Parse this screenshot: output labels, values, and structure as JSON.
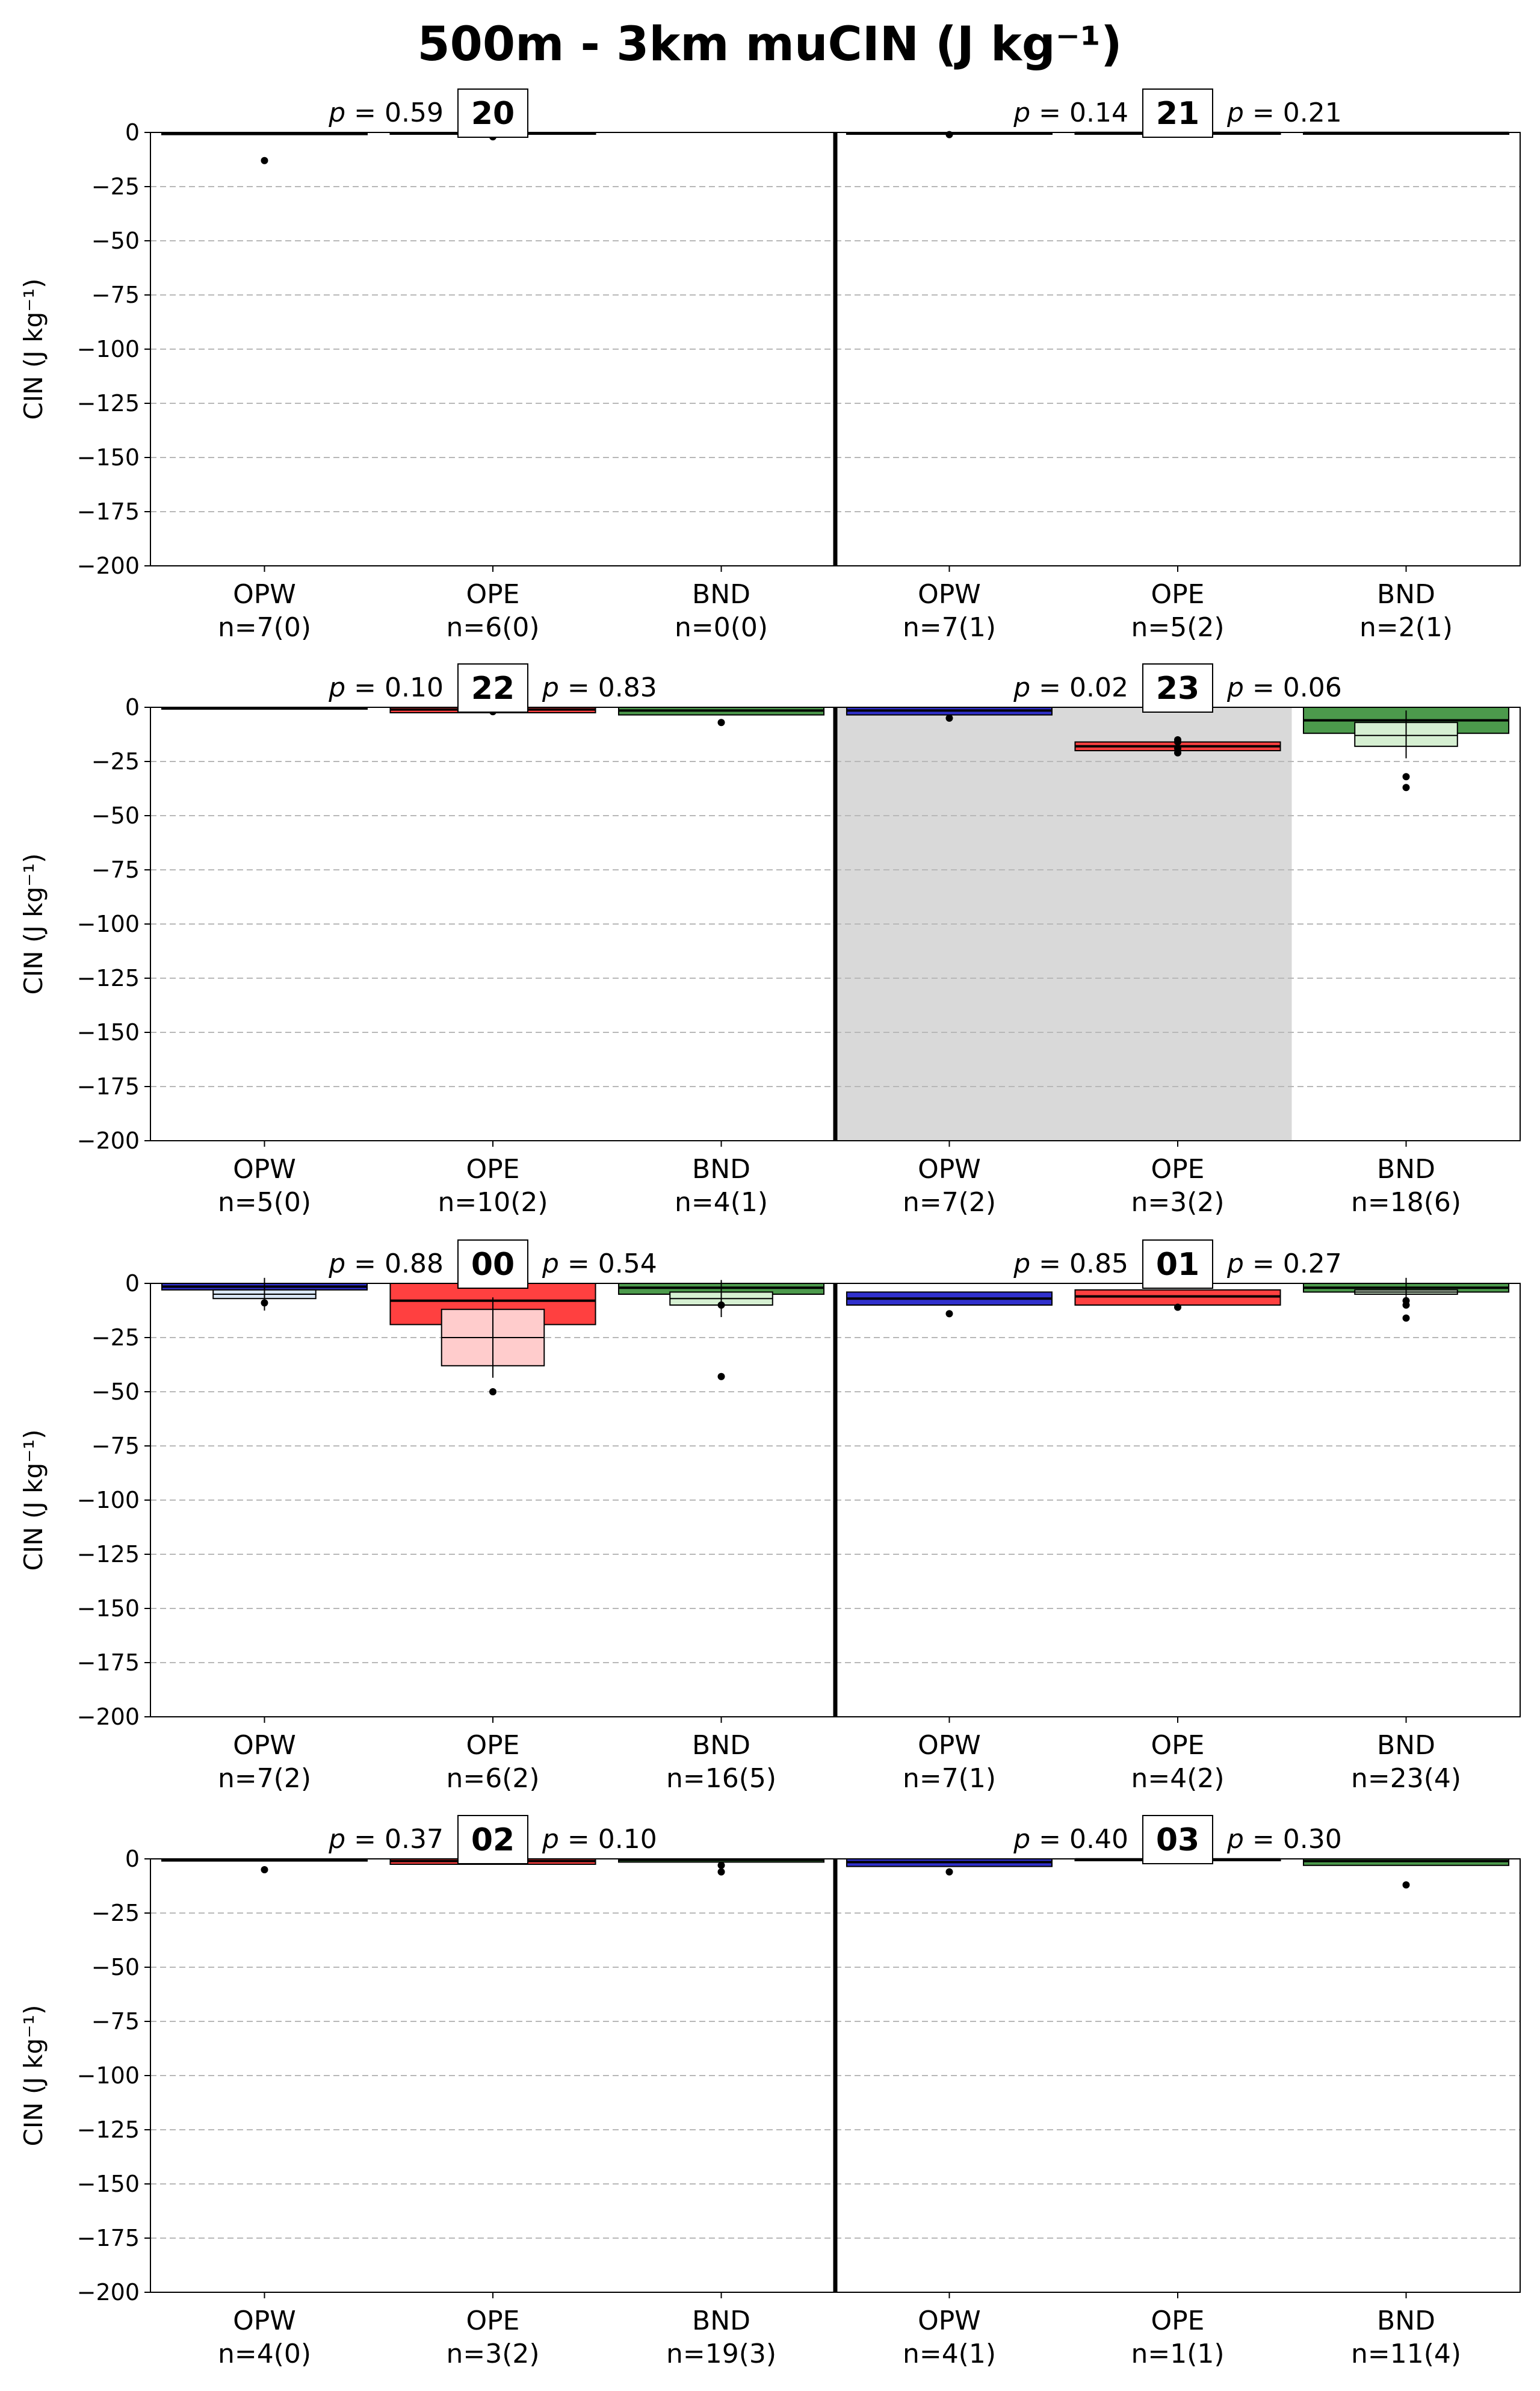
{
  "title": "500m - 3km muCIN (J kg⁻¹)",
  "ylabel": "CIN (J kg⁻¹)",
  "ytick_labels": [
    "0",
    "−25",
    "−50",
    "−75",
    "−100",
    "−125",
    "−150",
    "−175",
    "−200"
  ],
  "chart_data": {
    "type": "box",
    "ylim": [
      -200,
      0
    ],
    "yticks": [
      0,
      -25,
      -50,
      -75,
      -100,
      -125,
      -150,
      -175,
      -200
    ],
    "grid": "y-dashed",
    "categories": [
      "OPW",
      "OPE",
      "BND"
    ],
    "colors": {
      "OPW": {
        "main": "#3030cc",
        "light": "#d8e6f5"
      },
      "OPE": {
        "main": "#ff4040",
        "light": "#ffcccc"
      },
      "BND": {
        "main": "#4c9a4c",
        "light": "#d6f0d2"
      }
    },
    "rows": [
      {
        "panels": [
          {
            "hour": "20",
            "p_left": "0.59",
            "p_right": "",
            "shaded": false,
            "groups": [
              {
                "cat": "OPW",
                "n": "n=7(0)",
                "q1": -1.0,
                "q3": 0,
                "median": -0.5,
                "outliers": [
                  -13
                ],
                "sub": null
              },
              {
                "cat": "OPE",
                "n": "n=6(0)",
                "q1": -0.8,
                "q3": 0,
                "median": -0.3,
                "outliers": [
                  -2
                ],
                "sub": null
              },
              {
                "cat": "BND",
                "n": "n=0(0)",
                "q1": null,
                "q3": null,
                "median": null,
                "outliers": [],
                "sub": null
              }
            ]
          },
          {
            "hour": "21",
            "p_left": "0.14",
            "p_right": "0.21",
            "shaded": false,
            "groups": [
              {
                "cat": "OPW",
                "n": "n=7(1)",
                "q1": -0.8,
                "q3": 0,
                "median": -0.3,
                "outliers": [
                  -1
                ],
                "sub": null
              },
              {
                "cat": "OPE",
                "n": "n=5(2)",
                "q1": -0.5,
                "q3": 0,
                "median": -0.2,
                "outliers": [],
                "sub": null
              },
              {
                "cat": "BND",
                "n": "n=2(1)",
                "q1": -0.5,
                "q3": 0,
                "median": -0.2,
                "outliers": [],
                "sub": null
              }
            ]
          }
        ]
      },
      {
        "panels": [
          {
            "hour": "22",
            "p_left": "0.10",
            "p_right": "0.83",
            "shaded": false,
            "groups": [
              {
                "cat": "OPW",
                "n": "n=5(0)",
                "q1": -0.8,
                "q3": 0,
                "median": -0.3,
                "outliers": [],
                "sub": null
              },
              {
                "cat": "OPE",
                "n": "n=10(2)",
                "q1": -2.5,
                "q3": 0,
                "median": -1.0,
                "outliers": [
                  -2
                ],
                "sub": null
              },
              {
                "cat": "BND",
                "n": "n=4(1)",
                "q1": -3.5,
                "q3": 0,
                "median": -1.5,
                "outliers": [
                  -7
                ],
                "sub": null
              }
            ]
          },
          {
            "hour": "23",
            "p_left": "0.02",
            "p_right": "0.06",
            "shaded": true,
            "groups": [
              {
                "cat": "OPW",
                "n": "n=7(2)",
                "q1": -3.5,
                "q3": 0,
                "median": -1.5,
                "outliers": [
                  -5
                ],
                "sub": null
              },
              {
                "cat": "OPE",
                "n": "n=3(2)",
                "q1": -20,
                "q3": -16,
                "median": -18,
                "outliers": [
                  -15,
                  -16,
                  -19,
                  -21
                ],
                "sub": null
              },
              {
                "cat": "BND",
                "n": "n=18(6)",
                "q1": -12,
                "q3": 0,
                "median": -6,
                "outliers": [
                  -32,
                  -37
                ],
                "sub": {
                  "q1": -18,
                  "q3": -7,
                  "median": -13
                }
              }
            ]
          }
        ]
      },
      {
        "panels": [
          {
            "hour": "00",
            "p_left": "0.88",
            "p_right": "0.54",
            "shaded": false,
            "groups": [
              {
                "cat": "OPW",
                "n": "n=7(2)",
                "q1": -3,
                "q3": 0,
                "median": -1.5,
                "outliers": [
                  -9
                ],
                "sub": {
                  "q1": -7,
                  "q3": -3,
                  "median": -5
                }
              },
              {
                "cat": "OPE",
                "n": "n=6(2)",
                "q1": -19,
                "q3": 0,
                "median": -8,
                "outliers": [
                  -50
                ],
                "sub": {
                  "q1": -38,
                  "q3": -12,
                  "median": -25
                }
              },
              {
                "cat": "BND",
                "n": "n=16(5)",
                "q1": -5,
                "q3": 0,
                "median": -2,
                "outliers": [
                  -43,
                  -10
                ],
                "sub": {
                  "q1": -10,
                  "q3": -4,
                  "median": -7
                }
              }
            ]
          },
          {
            "hour": "01",
            "p_left": "0.85",
            "p_right": "0.27",
            "shaded": false,
            "groups": [
              {
                "cat": "OPW",
                "n": "n=7(1)",
                "q1": -10,
                "q3": -4,
                "median": -7,
                "outliers": [
                  -14
                ],
                "sub": null
              },
              {
                "cat": "OPE",
                "n": "n=4(2)",
                "q1": -10,
                "q3": -3,
                "median": -6,
                "outliers": [
                  -11
                ],
                "sub": null
              },
              {
                "cat": "BND",
                "n": "n=23(4)",
                "q1": -4,
                "q3": 0,
                "median": -2,
                "outliers": [
                  -8,
                  -10,
                  -16
                ],
                "sub": {
                  "q1": -5,
                  "q3": -3,
                  "median": -4
                }
              }
            ]
          }
        ]
      },
      {
        "panels": [
          {
            "hour": "02",
            "p_left": "0.37",
            "p_right": "0.10",
            "shaded": false,
            "groups": [
              {
                "cat": "OPW",
                "n": "n=4(0)",
                "q1": -1.0,
                "q3": 0,
                "median": -0.5,
                "outliers": [
                  -5
                ],
                "sub": null
              },
              {
                "cat": "OPE",
                "n": "n=3(2)",
                "q1": -2.5,
                "q3": 0,
                "median": -1.0,
                "outliers": [],
                "sub": null
              },
              {
                "cat": "BND",
                "n": "n=19(3)",
                "q1": -1.5,
                "q3": 0,
                "median": -0.5,
                "outliers": [
                  -3,
                  -6
                ],
                "sub": null
              }
            ]
          },
          {
            "hour": "03",
            "p_left": "0.40",
            "p_right": "0.30",
            "shaded": false,
            "groups": [
              {
                "cat": "OPW",
                "n": "n=4(1)",
                "q1": -3.5,
                "q3": 0,
                "median": -1.5,
                "outliers": [
                  -6
                ],
                "sub": null
              },
              {
                "cat": "OPE",
                "n": "n=1(1)",
                "q1": -0.5,
                "q3": 0,
                "median": -0.2,
                "outliers": [],
                "sub": null
              },
              {
                "cat": "BND",
                "n": "n=11(4)",
                "q1": -3,
                "q3": 0,
                "median": -1,
                "outliers": [
                  -12
                ],
                "sub": null
              }
            ]
          }
        ]
      }
    ]
  }
}
